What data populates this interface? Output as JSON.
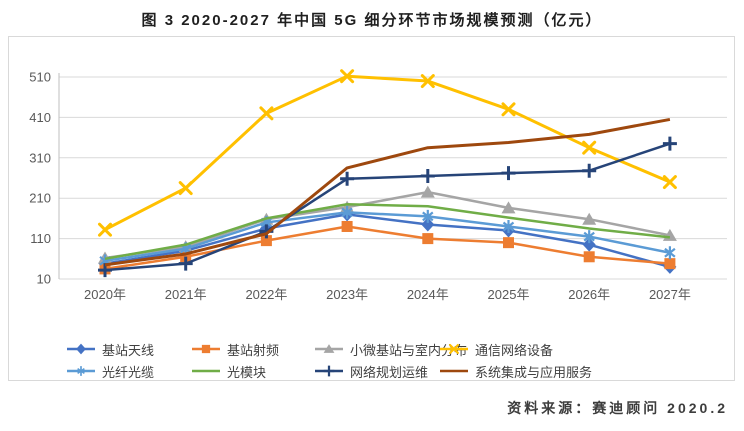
{
  "header": {
    "title": "图 3 2020-2027 年中国 5G 细分环节市场规模预测（亿元）"
  },
  "footer": {
    "source": "资料来源：赛迪顾问  2020.2"
  },
  "chart_data": {
    "type": "line",
    "title": "图 3 2020-2027 年中国 5G 细分环节市场规模预测（亿元）",
    "unit": "亿元",
    "categories": [
      "2020年",
      "2021年",
      "2022年",
      "2023年",
      "2024年",
      "2025年",
      "2026年",
      "2027年"
    ],
    "y_ticks": [
      10,
      110,
      210,
      310,
      410,
      510
    ],
    "ylim": [
      10,
      510
    ],
    "grid": true,
    "legend_position": "bottom",
    "series": [
      {
        "name": "基站天线",
        "color": "#4472C4",
        "marker": "diamond",
        "values": [
          48,
          80,
          135,
          170,
          145,
          130,
          95,
          40
        ]
      },
      {
        "name": "基站射频",
        "color": "#ED7D31",
        "marker": "square",
        "values": [
          35,
          65,
          105,
          140,
          110,
          100,
          65,
          48
        ]
      },
      {
        "name": "小微基站与室内分布",
        "color": "#A5A5A5",
        "marker": "triangle",
        "values": [
          62,
          90,
          158,
          188,
          225,
          186,
          158,
          118
        ]
      },
      {
        "name": "通信网络设备",
        "color": "#FFC000",
        "marker": "x",
        "values": [
          132,
          235,
          420,
          512,
          500,
          430,
          335,
          250
        ]
      },
      {
        "name": "光纤光缆",
        "color": "#5B9BD5",
        "marker": "asterisk",
        "values": [
          55,
          85,
          150,
          175,
          165,
          140,
          115,
          75
        ]
      },
      {
        "name": "光模块",
        "color": "#70AD47",
        "marker": "circle",
        "values": [
          60,
          95,
          160,
          195,
          190,
          162,
          135,
          113
        ]
      },
      {
        "name": "网络规划运维",
        "color": "#264478",
        "marker": "plus",
        "values": [
          32,
          48,
          128,
          258,
          265,
          272,
          278,
          345
        ]
      },
      {
        "name": "系统集成与应用服务",
        "color": "#9E480E",
        "marker": "none",
        "values": [
          45,
          72,
          122,
          285,
          335,
          348,
          368,
          405
        ]
      }
    ]
  }
}
